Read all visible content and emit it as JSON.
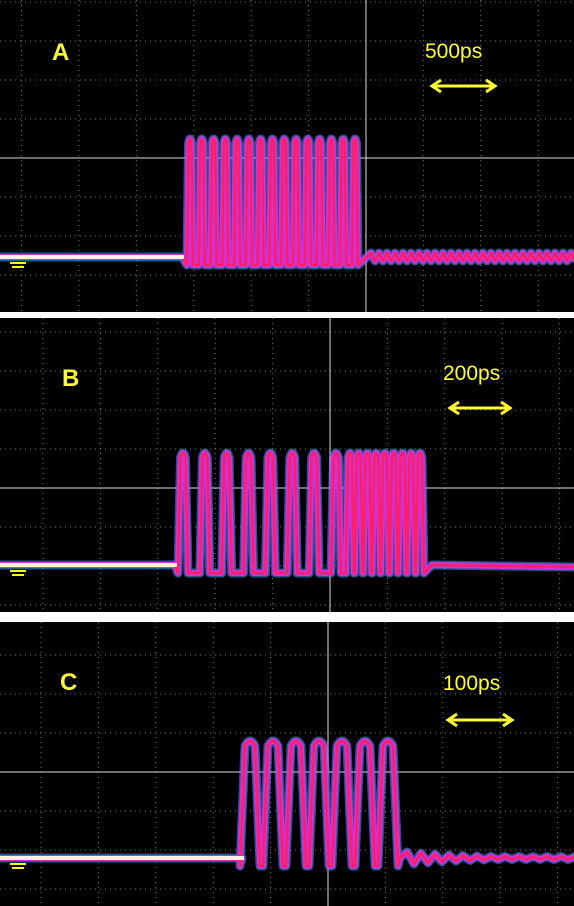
{
  "panels": [
    {
      "label": "A",
      "scale": "500ps"
    },
    {
      "label": "B",
      "scale": "200ps"
    },
    {
      "label": "C",
      "scale": "100ps"
    }
  ]
}
